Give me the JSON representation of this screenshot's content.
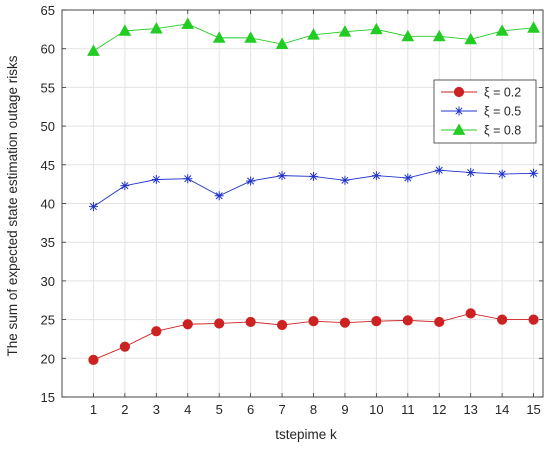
{
  "chart_data": {
    "type": "line",
    "title": "",
    "xlabel": "tstepime  k",
    "ylabel": "The sum of expected state estimation outage risks",
    "xlim": [
      0,
      15.3
    ],
    "ylim": [
      15,
      65
    ],
    "x": [
      1,
      2,
      3,
      4,
      5,
      6,
      7,
      8,
      9,
      10,
      11,
      12,
      13,
      14,
      15
    ],
    "xticks": [
      "1",
      "2",
      "3",
      "4",
      "5",
      "6",
      "7",
      "8",
      "9",
      "10",
      "11",
      "12",
      "13",
      "14",
      "15"
    ],
    "yticks": [
      "15",
      "20",
      "25",
      "30",
      "35",
      "40",
      "45",
      "50",
      "55",
      "60",
      "65"
    ],
    "grid": true,
    "legend_position": "upper-right",
    "series": [
      {
        "name": "ξ = 0.2",
        "color": "#cc2222",
        "marker": "circle",
        "values": [
          19.8,
          21.5,
          23.5,
          24.4,
          24.5,
          24.7,
          24.3,
          24.8,
          24.6,
          24.8,
          24.9,
          24.7,
          25.8,
          25.0,
          25.0
        ]
      },
      {
        "name": "ξ = 0.5",
        "color": "#2233cc",
        "marker": "asterisk",
        "values": [
          39.6,
          42.3,
          43.1,
          43.2,
          41.0,
          42.9,
          43.6,
          43.5,
          43.0,
          43.6,
          43.3,
          44.3,
          44.0,
          43.8,
          43.9
        ]
      },
      {
        "name": "ξ = 0.8",
        "color": "#22cc22",
        "marker": "triangle",
        "values": [
          59.7,
          62.3,
          62.6,
          63.2,
          61.4,
          61.4,
          60.6,
          61.8,
          62.2,
          62.5,
          61.6,
          61.6,
          61.2,
          62.3,
          62.7
        ]
      }
    ]
  }
}
